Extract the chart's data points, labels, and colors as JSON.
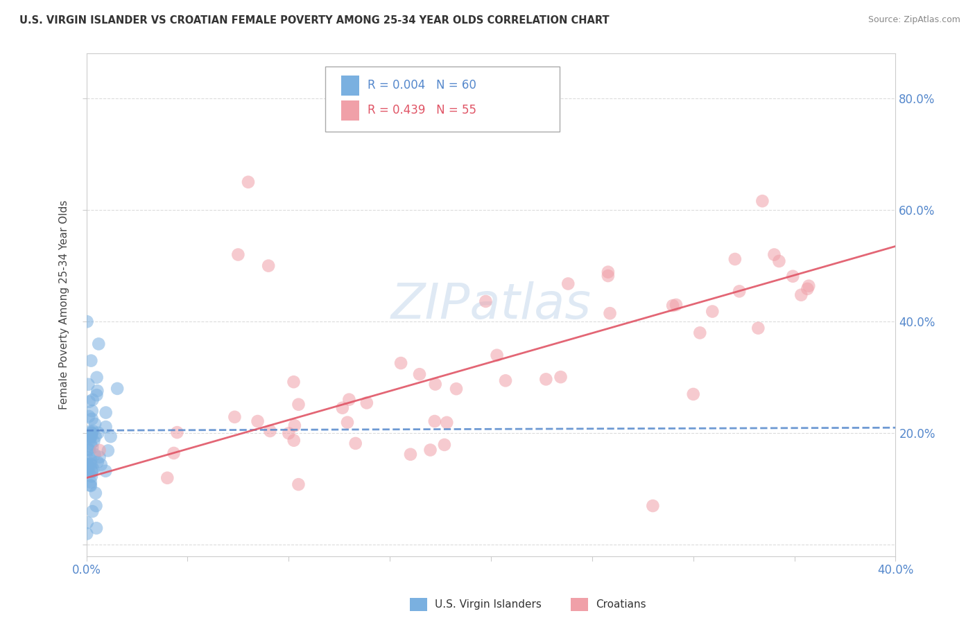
{
  "title": "U.S. VIRGIN ISLANDER VS CROATIAN FEMALE POVERTY AMONG 25-34 YEAR OLDS CORRELATION CHART",
  "source": "Source: ZipAtlas.com",
  "ylabel": "Female Poverty Among 25-34 Year Olds",
  "xlim": [
    0,
    0.4
  ],
  "ylim": [
    -0.02,
    0.88
  ],
  "xtick_positions": [
    0.0,
    0.05,
    0.1,
    0.15,
    0.2,
    0.25,
    0.3,
    0.35,
    0.4
  ],
  "xticklabels": [
    "0.0%",
    "",
    "",
    "",
    "",
    "",
    "",
    "",
    "40.0%"
  ],
  "ytick_positions": [
    0.0,
    0.2,
    0.4,
    0.6,
    0.8
  ],
  "yticklabels_right": [
    "",
    "20.0%",
    "40.0%",
    "60.0%",
    "80.0%"
  ],
  "legend1_label": "R = 0.004   N = 60",
  "legend2_label": "R = 0.439   N = 55",
  "legend_vi_label": "U.S. Virgin Islanders",
  "legend_cr_label": "Croatians",
  "blue_color": "#7ab0e0",
  "pink_color": "#f0a0a8",
  "blue_line_color": "#5588cc",
  "pink_line_color": "#e05566",
  "blue_trend_x": [
    0.0,
    0.4
  ],
  "blue_trend_y": [
    0.205,
    0.21
  ],
  "pink_trend_x": [
    0.0,
    0.4
  ],
  "pink_trend_y": [
    0.12,
    0.535
  ],
  "watermark_text": "ZIPatlas",
  "grid_color": "#cccccc",
  "background_color": "#ffffff"
}
